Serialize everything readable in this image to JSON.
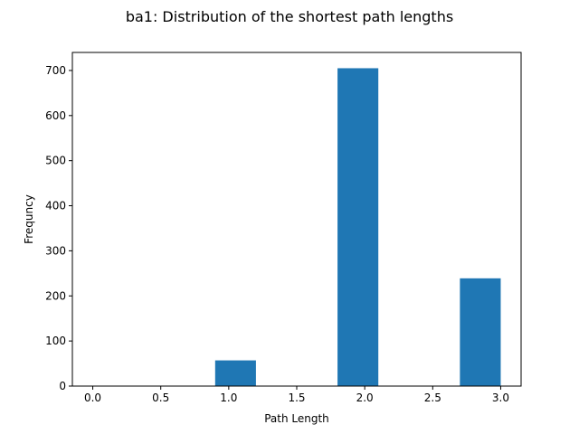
{
  "chart_data": {
    "type": "bar",
    "title": "ba1: Distribution of the shortest path lengths",
    "xlabel": "Path Length",
    "ylabel": "Frequncy",
    "xlim": [
      -0.15,
      3.15
    ],
    "ylim": [
      0,
      740
    ],
    "x_ticks": [
      0.0,
      0.5,
      1.0,
      1.5,
      2.0,
      2.5,
      3.0
    ],
    "x_tick_labels": [
      "0.0",
      "0.5",
      "1.0",
      "1.5",
      "2.0",
      "2.5",
      "3.0"
    ],
    "y_ticks": [
      0,
      100,
      200,
      300,
      400,
      500,
      600,
      700
    ],
    "y_tick_labels": [
      "0",
      "100",
      "200",
      "300",
      "400",
      "500",
      "600",
      "700"
    ],
    "bins": [
      {
        "start": 0.0,
        "end": 0.3,
        "count": 0
      },
      {
        "start": 0.3,
        "end": 0.6,
        "count": 0
      },
      {
        "start": 0.6,
        "end": 0.9,
        "count": 0
      },
      {
        "start": 0.9,
        "end": 1.2,
        "count": 57
      },
      {
        "start": 1.2,
        "end": 1.5,
        "count": 0
      },
      {
        "start": 1.5,
        "end": 1.8,
        "count": 0
      },
      {
        "start": 1.8,
        "end": 2.1,
        "count": 705
      },
      {
        "start": 2.1,
        "end": 2.4,
        "count": 0
      },
      {
        "start": 2.4,
        "end": 2.7,
        "count": 0
      },
      {
        "start": 2.7,
        "end": 3.0,
        "count": 239
      }
    ],
    "bar_color": "#1f77b4",
    "grid": false,
    "legend": "none"
  }
}
